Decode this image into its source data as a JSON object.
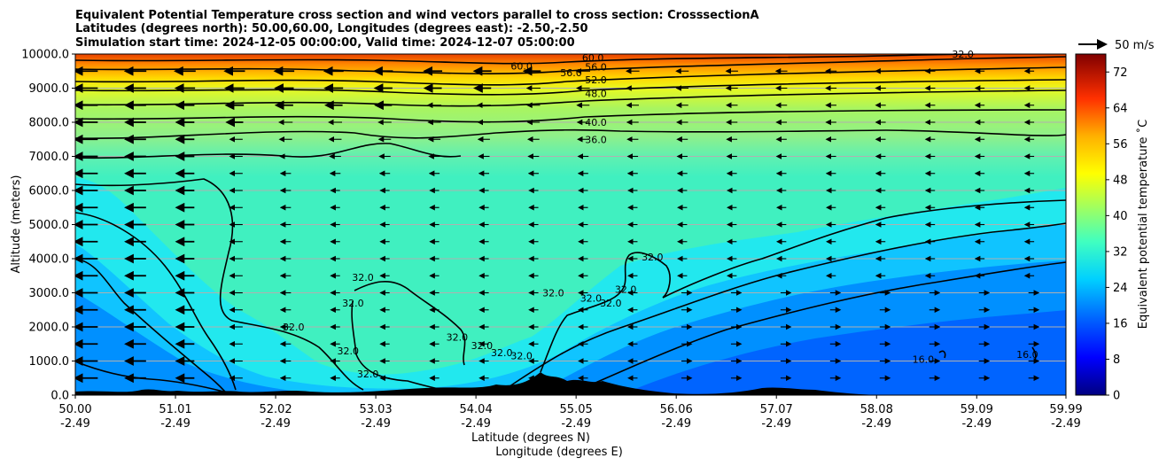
{
  "chart_data": {
    "type": "contour",
    "title_lines": [
      "Equivalent Potential Temperature cross section and wind vectors parallel to cross section: CrosssectionA",
      "Latitudes (degrees north): 50.00,60.00, Longitudes (degrees east): -2.50,-2.50",
      "Simulation start time: 2024-12-05 00:00:00, Valid time: 2024-12-07 05:00:00"
    ],
    "xlabel_line1": "Latitude (degrees N)",
    "xlabel_line2": "Longitude (degrees E)",
    "ylabel": "Altitude (meters)",
    "x_range": [
      50.0,
      59.99
    ],
    "y_range": [
      0,
      10000
    ],
    "x_ticks": [
      {
        "lat": "50.00",
        "lon": "-2.49",
        "value": 50.0
      },
      {
        "lat": "51.01",
        "lon": "-2.49",
        "value": 51.01
      },
      {
        "lat": "52.02",
        "lon": "-2.49",
        "value": 52.02
      },
      {
        "lat": "53.03",
        "lon": "-2.49",
        "value": 53.03
      },
      {
        "lat": "54.04",
        "lon": "-2.49",
        "value": 54.04
      },
      {
        "lat": "55.05",
        "lon": "-2.49",
        "value": 55.05
      },
      {
        "lat": "56.06",
        "lon": "-2.49",
        "value": 56.06
      },
      {
        "lat": "57.07",
        "lon": "-2.49",
        "value": 57.07
      },
      {
        "lat": "58.08",
        "lon": "-2.49",
        "value": 58.08
      },
      {
        "lat": "59.09",
        "lon": "-2.49",
        "value": 59.09
      },
      {
        "lat": "59.99",
        "lon": "-2.49",
        "value": 59.99
      }
    ],
    "y_ticks": [
      {
        "label": "0.0",
        "value": 0
      },
      {
        "label": "1000.0",
        "value": 1000
      },
      {
        "label": "2000.0",
        "value": 2000
      },
      {
        "label": "3000.0",
        "value": 3000
      },
      {
        "label": "4000.0",
        "value": 4000
      },
      {
        "label": "5000.0",
        "value": 5000
      },
      {
        "label": "6000.0",
        "value": 6000
      },
      {
        "label": "7000.0",
        "value": 7000
      },
      {
        "label": "8000.0",
        "value": 8000
      },
      {
        "label": "9000.0",
        "value": 9000
      },
      {
        "label": "10000.0",
        "value": 10000
      }
    ],
    "grid": "horizontal",
    "colorbar": {
      "label": "Equivalent potential temperature ˚C",
      "range": [
        0,
        76
      ],
      "ticks": [
        "0",
        "8",
        "16",
        "24",
        "32",
        "40",
        "48",
        "56",
        "64",
        "72"
      ],
      "tick_values": [
        0,
        8,
        16,
        24,
        32,
        40,
        48,
        56,
        64,
        72
      ]
    },
    "wind_key": {
      "label": "50 m/s",
      "value": 50
    },
    "contour_labels": [
      {
        "text": "60.0",
        "lat": 54.5,
        "alt": 9650
      },
      {
        "text": "60.0",
        "lat": 55.22,
        "alt": 9900
      },
      {
        "text": "56.0",
        "lat": 55.0,
        "alt": 9450
      },
      {
        "text": "56.0",
        "lat": 55.25,
        "alt": 9620
      },
      {
        "text": "52.0",
        "lat": 55.25,
        "alt": 9250
      },
      {
        "text": "48.0",
        "lat": 55.25,
        "alt": 8850
      },
      {
        "text": "40.0",
        "lat": 55.25,
        "alt": 8000
      },
      {
        "text": "36.0",
        "lat": 55.25,
        "alt": 7500
      },
      {
        "text": "32.0",
        "lat": 58.95,
        "alt": 10000
      },
      {
        "text": "32.0",
        "lat": 52.9,
        "alt": 3450
      },
      {
        "text": "32.0",
        "lat": 52.8,
        "alt": 2700
      },
      {
        "text": "32.0",
        "lat": 52.2,
        "alt": 2000
      },
      {
        "text": "32.0",
        "lat": 52.75,
        "alt": 1300
      },
      {
        "text": "32.0",
        "lat": 52.95,
        "alt": 620
      },
      {
        "text": "32.0",
        "lat": 53.85,
        "alt": 1700
      },
      {
        "text": "32.0",
        "lat": 54.1,
        "alt": 1450
      },
      {
        "text": "32.0",
        "lat": 54.3,
        "alt": 1250
      },
      {
        "text": "32.0",
        "lat": 54.5,
        "alt": 1150
      },
      {
        "text": "32.0",
        "lat": 54.82,
        "alt": 3000
      },
      {
        "text": "32.0",
        "lat": 55.2,
        "alt": 2850
      },
      {
        "text": "32.0",
        "lat": 55.55,
        "alt": 3100
      },
      {
        "text": "32.0",
        "lat": 55.82,
        "alt": 4050
      },
      {
        "text": "32.0",
        "lat": 55.4,
        "alt": 2700
      },
      {
        "text": "16.0",
        "lat": 58.55,
        "alt": 1050
      },
      {
        "text": "16.0",
        "lat": 59.6,
        "alt": 1200
      }
    ],
    "contour_levels": [
      16,
      24,
      28,
      32,
      36,
      40,
      48,
      52,
      56,
      60
    ]
  }
}
